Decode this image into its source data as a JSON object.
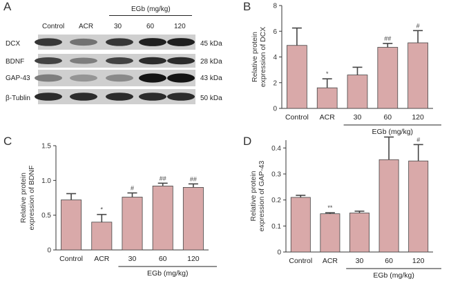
{
  "panel_labels": [
    "A",
    "B",
    "C",
    "D"
  ],
  "colors": {
    "bar_fill": "#d9a9a9",
    "axis": "#333333",
    "error": "#444444",
    "blot_bg": "#cfcfcf",
    "band": "#1a1a1a"
  },
  "blot": {
    "lane_labels": [
      "Control",
      "ACR",
      "30",
      "60",
      "120"
    ],
    "treatment_label": "EGb (mg/kg)",
    "rows": [
      {
        "name": "DCX",
        "size": "45 kDa",
        "intensity": [
          0.85,
          0.6,
          0.85,
          0.95,
          0.95
        ]
      },
      {
        "name": "BDNF",
        "size": "28 kDa",
        "intensity": [
          0.8,
          0.55,
          0.8,
          0.9,
          0.9
        ]
      },
      {
        "name": "GAP-43",
        "size": "43 kDa",
        "intensity": [
          0.55,
          0.45,
          0.5,
          1.0,
          1.0
        ]
      },
      {
        "name": "β-Tublin",
        "size": "50 kDa",
        "intensity": [
          0.9,
          0.9,
          0.9,
          0.9,
          0.9
        ]
      }
    ]
  },
  "chart_data": [
    {
      "panel": "B",
      "type": "bar",
      "categories": [
        "Control",
        "ACR",
        "30",
        "60",
        "120"
      ],
      "values": [
        4.9,
        1.6,
        2.6,
        4.75,
        5.1
      ],
      "errors": [
        1.35,
        0.7,
        0.6,
        0.3,
        0.95
      ],
      "significance": [
        "",
        "*",
        "",
        "##",
        "#"
      ],
      "ylabel": "Relative protein expression of DCX",
      "ylim": [
        0,
        8
      ],
      "yticks": [
        "0",
        "2",
        "4",
        "6",
        "8"
      ],
      "yticks_values": [
        0,
        2,
        4,
        6,
        8
      ],
      "group_label": "EGb (mg/kg)"
    },
    {
      "panel": "C",
      "type": "bar",
      "categories": [
        "Control",
        "ACR",
        "30",
        "60",
        "120"
      ],
      "values": [
        0.72,
        0.4,
        0.76,
        0.92,
        0.9
      ],
      "errors": [
        0.09,
        0.11,
        0.06,
        0.04,
        0.05
      ],
      "significance": [
        "",
        "*",
        "#",
        "##",
        "##"
      ],
      "ylabel": "Relative protein expression of BDNF",
      "ylim": [
        0,
        1.5
      ],
      "yticks": [
        "0",
        "0.5",
        "1.0",
        "1.5"
      ],
      "yticks_values": [
        0,
        0.5,
        1.0,
        1.5
      ],
      "group_label": "EGb (mg/kg)"
    },
    {
      "panel": "D",
      "type": "bar",
      "categories": [
        "Control",
        "ACR",
        "30",
        "60",
        "120"
      ],
      "values": [
        0.21,
        0.147,
        0.15,
        0.355,
        0.35
      ],
      "errors": [
        0.008,
        0.004,
        0.007,
        0.087,
        0.063
      ],
      "significance": [
        "",
        "**",
        "",
        "#",
        "#"
      ],
      "ylabel": "Relative protein expression of GAP-43",
      "ylim": [
        0,
        0.43
      ],
      "yticks": [
        "0",
        "0.1",
        "0.2",
        "0.3",
        "0.4"
      ],
      "yticks_values": [
        0,
        0.1,
        0.2,
        0.3,
        0.4
      ],
      "group_label": "EGb (mg/kg)"
    }
  ]
}
